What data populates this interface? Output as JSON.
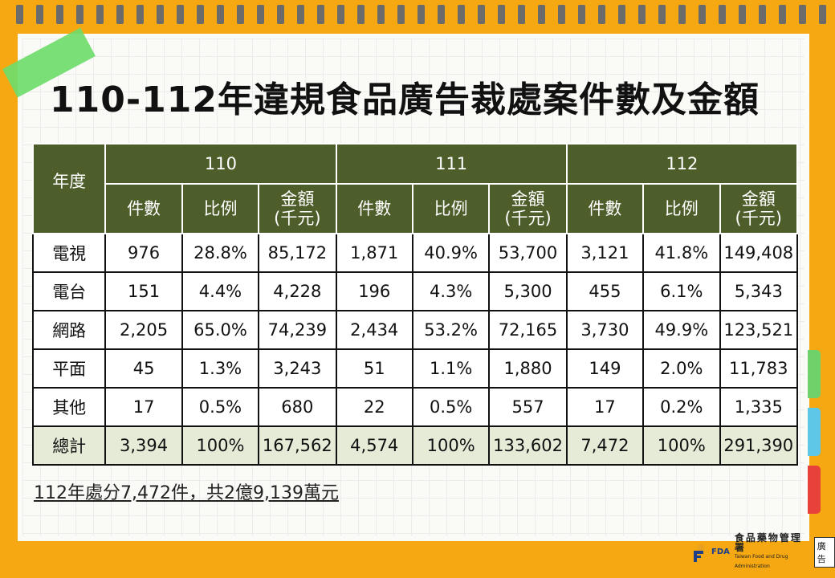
{
  "title": "110-112年違規食品廣告裁處案件數及金額",
  "table": {
    "year_header": "年度",
    "years": [
      "110",
      "111",
      "112"
    ],
    "sub_headers": {
      "count": "件數",
      "ratio": "比例",
      "amount_line1": "金額",
      "amount_line2": "(千元)"
    },
    "rows": [
      {
        "label": "電視",
        "values": [
          "976",
          "28.8%",
          "85,172",
          "1,871",
          "40.9%",
          "53,700",
          "3,121",
          "41.8%",
          "149,408"
        ]
      },
      {
        "label": "電台",
        "values": [
          "151",
          "4.4%",
          "4,228",
          "196",
          "4.3%",
          "5,300",
          "455",
          "6.1%",
          "5,343"
        ]
      },
      {
        "label": "網路",
        "values": [
          "2,205",
          "65.0%",
          "74,239",
          "2,434",
          "53.2%",
          "72,165",
          "3,730",
          "49.9%",
          "123,521"
        ]
      },
      {
        "label": "平面",
        "values": [
          "45",
          "1.3%",
          "3,243",
          "51",
          "1.1%",
          "1,880",
          "149",
          "2.0%",
          "11,783"
        ]
      },
      {
        "label": "其他",
        "values": [
          "17",
          "0.5%",
          "680",
          "22",
          "0.5%",
          "557",
          "17",
          "0.2%",
          "1,335"
        ]
      }
    ],
    "total": {
      "label": "總計",
      "values": [
        "3,394",
        "100%",
        "167,562",
        "4,574",
        "100%",
        "133,602",
        "7,472",
        "100%",
        "291,390"
      ]
    }
  },
  "footer_note": "112年處分7,472件，共2億9,139萬元",
  "logo": {
    "org_name": "食品藥物管理署",
    "org_name_en": "Taiwan Food and Drug Administration",
    "abbr": "FDA",
    "badge": "廣告"
  },
  "colors": {
    "background": "#f5a811",
    "header_green": "#4e5e2b",
    "total_row": "#e6ebd8",
    "tape": "#6fdc6b",
    "tab_green": "#6fd16a",
    "tab_blue": "#5ec7e8",
    "tab_red": "#e8413a"
  }
}
